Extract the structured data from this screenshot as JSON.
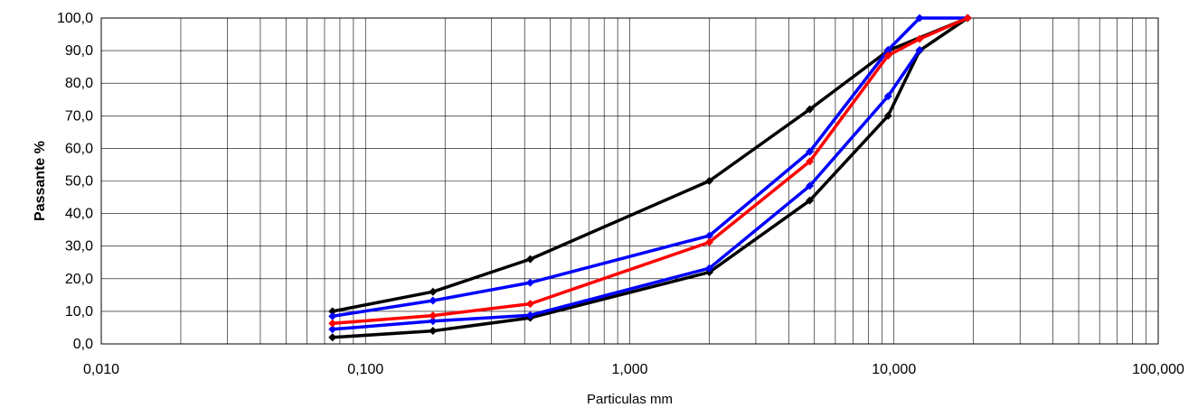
{
  "chart_data": {
    "type": "line",
    "xscale": "log",
    "xlim": [
      0.01,
      100
    ],
    "ylim": [
      0,
      100
    ],
    "xlabel": "Particulas mm",
    "ylabel": "Passante %",
    "grid": true,
    "x_ticks": [
      "0,010",
      "0,100",
      "1,000",
      "10,000",
      "100,000"
    ],
    "y_ticks": [
      "0,0",
      "10,0",
      "20,0",
      "30,0",
      "40,0",
      "50,0",
      "60,0",
      "70,0",
      "80,0",
      "90,0",
      "100,0"
    ],
    "x": [
      0.075,
      0.18,
      0.42,
      2.0,
      4.8,
      9.5,
      12.5,
      19.0
    ],
    "series": [
      {
        "color": "#000000",
        "values": [
          10,
          16,
          26,
          50,
          72,
          90,
          null,
          100
        ]
      },
      {
        "color": "#000000",
        "values": [
          2,
          4,
          8,
          22,
          44,
          70,
          90,
          100
        ]
      },
      {
        "color": "#0000ff",
        "values": [
          8.5,
          13.3,
          18.8,
          33.2,
          59,
          90.2,
          100,
          100
        ]
      },
      {
        "color": "#0000ff",
        "values": [
          4.5,
          7,
          8.8,
          23.2,
          48.5,
          76,
          90.2,
          null
        ]
      },
      {
        "color": "#ff0000",
        "values": [
          6.3,
          8.7,
          12.3,
          31.2,
          56,
          88.5,
          93.6,
          100
        ]
      }
    ]
  }
}
